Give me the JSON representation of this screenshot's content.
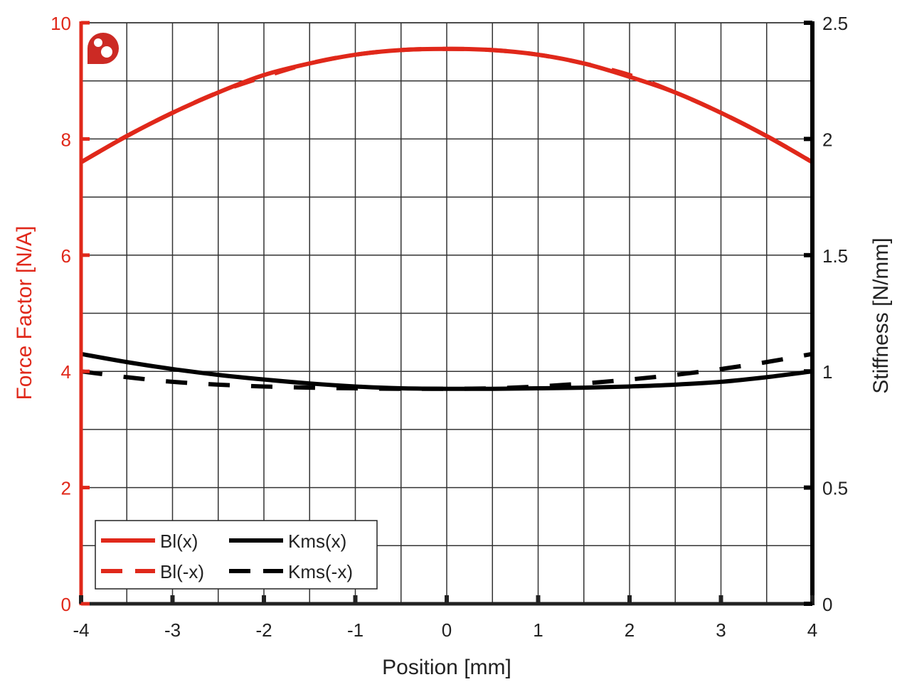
{
  "chart_data": {
    "type": "line",
    "title": "",
    "xlabel": "Position [mm]",
    "ylabel_left": "Force Factor [N/A]",
    "ylabel_right": "Stiffness [N/mm]",
    "xlim": [
      -4,
      4
    ],
    "ylim_left": [
      0,
      10
    ],
    "ylim_right": [
      0,
      2.5
    ],
    "x_ticks": [
      -4,
      -3,
      -2,
      -1,
      0,
      1,
      2,
      3,
      4
    ],
    "x_tick_labels": [
      "-4",
      "-3",
      "-2",
      "-1",
      "0",
      "1",
      "2",
      "3",
      "4"
    ],
    "y_left_ticks": [
      0,
      2,
      4,
      6,
      8,
      10
    ],
    "y_left_tick_labels": [
      "0",
      "2",
      "4",
      "6",
      "8",
      "10"
    ],
    "y_right_ticks": [
      0,
      0.5,
      1,
      1.5,
      2,
      2.5
    ],
    "y_right_tick_labels": [
      "0",
      "0.5",
      "1",
      "1.5",
      "2",
      "2.5"
    ],
    "grid": true,
    "grid_x_step": 0.5,
    "grid_y_left_step": 1,
    "legend_position": "lower left",
    "x": [
      -4,
      -3.5,
      -3,
      -2.5,
      -2,
      -1.5,
      -1,
      -0.5,
      0,
      0.5,
      1,
      1.5,
      2,
      2.5,
      3,
      3.5,
      4
    ],
    "series": [
      {
        "name": "Bl(x)",
        "axis": "left",
        "color": "#e0281a",
        "style": "solid",
        "values": [
          7.6,
          8.05,
          8.45,
          8.8,
          9.1,
          9.3,
          9.45,
          9.53,
          9.55,
          9.53,
          9.45,
          9.3,
          9.07,
          8.8,
          8.45,
          8.05,
          7.6
        ]
      },
      {
        "name": "Bl(-x)",
        "axis": "left",
        "color": "#e0281a",
        "style": "dashed",
        "values": [
          7.6,
          8.05,
          8.45,
          8.8,
          9.07,
          9.3,
          9.45,
          9.53,
          9.55,
          9.53,
          9.45,
          9.3,
          9.1,
          8.8,
          8.45,
          8.05,
          7.6
        ]
      },
      {
        "name": "Kms(x)",
        "axis": "right",
        "color": "#000000",
        "style": "solid",
        "values": [
          1.075,
          1.04,
          1.01,
          0.985,
          0.965,
          0.948,
          0.935,
          0.927,
          0.925,
          0.925,
          0.927,
          0.93,
          0.935,
          0.943,
          0.955,
          0.975,
          1.0
        ]
      },
      {
        "name": "Kms(-x)",
        "axis": "right",
        "color": "#000000",
        "style": "dashed",
        "values": [
          1.0,
          0.975,
          0.955,
          0.943,
          0.935,
          0.93,
          0.927,
          0.925,
          0.925,
          0.927,
          0.935,
          0.948,
          0.965,
          0.985,
          1.01,
          1.04,
          1.075
        ]
      }
    ]
  },
  "legend": {
    "items": [
      {
        "label": "Bl(x)",
        "color": "#e0281a",
        "style": "solid"
      },
      {
        "label": "Kms(x)",
        "color": "#000000",
        "style": "solid"
      },
      {
        "label": "Bl(-x)",
        "color": "#e0281a",
        "style": "dashed"
      },
      {
        "label": "Kms(-x)",
        "color": "#000000",
        "style": "dashed"
      }
    ]
  },
  "logo": {
    "icon": "brand-logo-icon",
    "color": "#cc2a24"
  },
  "colors": {
    "accent": "#e0281a",
    "axis_right": "#000000",
    "grid": "#333333"
  }
}
